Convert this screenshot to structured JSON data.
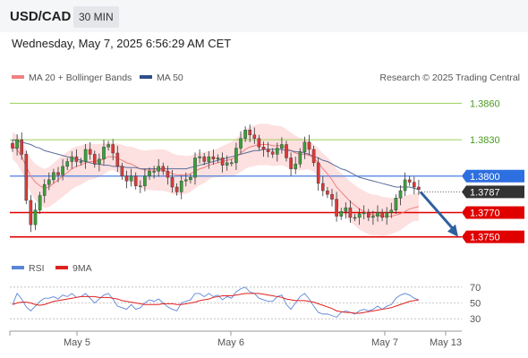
{
  "header": {
    "pair": "USD/CAD",
    "timeframe": "30 MIN"
  },
  "datetime": "Wednesday, May 7, 2025 6:56:29 AM CET",
  "legend": {
    "ma20": "MA 20 + Bollinger Bands",
    "ma50": "MA 50",
    "credit": "Research © 2025 Trading Central"
  },
  "indicator_legend": {
    "rsi": "RSI",
    "ma9": "9MA"
  },
  "colors": {
    "up": "#3a9f3a",
    "down": "#d93a3a",
    "resistance": "#9bcf5a",
    "support": "#e00000",
    "current_tag": "#333333",
    "pivot_line": "#4a7fe0",
    "ma50": "#5a6e9a",
    "ma20": "#f08080",
    "bands": "#fcd8d8",
    "rsi": "#5b86d8",
    "ma9": "#e02020",
    "arrow": "#2e5f9e"
  },
  "chart_data": [
    {
      "type": "candlestick",
      "title": "USD/CAD",
      "x_labels": [
        "May 5",
        "May 6",
        "May 7",
        "May 13"
      ],
      "ylim": [
        1.3735,
        1.3875
      ],
      "price_levels": [
        {
          "label": "1.3860",
          "value": 1.386,
          "kind": "resistance"
        },
        {
          "label": "1.3830",
          "value": 1.383,
          "kind": "resistance"
        },
        {
          "label": "1.3800",
          "value": 1.38,
          "kind": "pivot"
        },
        {
          "label": "1.3787",
          "value": 1.3787,
          "kind": "current"
        },
        {
          "label": "1.3770",
          "value": 1.377,
          "kind": "support"
        },
        {
          "label": "1.3750",
          "value": 1.375,
          "kind": "support"
        }
      ],
      "closes": [
        1.3823,
        1.383,
        1.3818,
        1.378,
        1.376,
        1.3772,
        1.3784,
        1.3793,
        1.3797,
        1.3803,
        1.3801,
        1.3808,
        1.3812,
        1.3816,
        1.3812,
        1.3812,
        1.3822,
        1.3818,
        1.381,
        1.3814,
        1.3824,
        1.3826,
        1.3819,
        1.3808,
        1.38,
        1.3796,
        1.38,
        1.3792,
        1.3792,
        1.38,
        1.3804,
        1.3804,
        1.3808,
        1.3804,
        1.3799,
        1.3791,
        1.3787,
        1.3796,
        1.3797,
        1.3799,
        1.3815,
        1.3816,
        1.3812,
        1.3816,
        1.3814,
        1.3815,
        1.3809,
        1.3811,
        1.3811,
        1.3823,
        1.3831,
        1.3838,
        1.3834,
        1.3831,
        1.3824,
        1.3822,
        1.382,
        1.3818,
        1.3823,
        1.3826,
        1.3815,
        1.3806,
        1.381,
        1.382,
        1.3828,
        1.3822,
        1.3811,
        1.3794,
        1.3788,
        1.3785,
        1.3781,
        1.3767,
        1.3771,
        1.3774,
        1.3766,
        1.3766,
        1.3769,
        1.377,
        1.3766,
        1.3767,
        1.377,
        1.3766,
        1.377,
        1.3772,
        1.3782,
        1.3788,
        1.3797,
        1.3795,
        1.3791,
        1.3789
      ],
      "ma20": [
        1.3825,
        1.3822,
        1.3816,
        1.3808,
        1.38,
        1.3795,
        1.3792,
        1.379,
        1.3791,
        1.3794,
        1.3797,
        1.38,
        1.3803,
        1.3806,
        1.3808,
        1.3809,
        1.3811,
        1.3812,
        1.3812,
        1.3813,
        1.3814,
        1.3816,
        1.3816,
        1.3815,
        1.3813,
        1.3811,
        1.381,
        1.3808,
        1.3806,
        1.3805,
        1.3805,
        1.3805,
        1.3805,
        1.3805,
        1.3804,
        1.3802,
        1.3801,
        1.3801,
        1.3801,
        1.3802,
        1.3804,
        1.3806,
        1.3807,
        1.3809,
        1.381,
        1.3811,
        1.3812,
        1.3813,
        1.3814,
        1.3816,
        1.3819,
        1.3822,
        1.3824,
        1.3825,
        1.3826,
        1.3826,
        1.3826,
        1.3825,
        1.3825,
        1.3825,
        1.3823,
        1.3821,
        1.3819,
        1.3818,
        1.3818,
        1.3817,
        1.3815,
        1.3811,
        1.3806,
        1.3802,
        1.3797,
        1.3791,
        1.3787,
        1.3783,
        1.3779,
        1.3776,
        1.3773,
        1.3771,
        1.3769,
        1.3768,
        1.3768,
        1.3767,
        1.3767,
        1.3767,
        1.3768,
        1.3769,
        1.3771,
        1.3773,
        1.3774,
        1.3775
      ],
      "ma50": [
        1.383,
        1.3829,
        1.3828,
        1.3827,
        1.3826,
        1.3824,
        1.3823,
        1.3821,
        1.382,
        1.3819,
        1.3818,
        1.3817,
        1.3816,
        1.3815,
        1.3814,
        1.3813,
        1.3812,
        1.3811,
        1.381,
        1.381,
        1.3809,
        1.3809,
        1.3808,
        1.3808,
        1.3808,
        1.3807,
        1.3807,
        1.3807,
        1.3806,
        1.3806,
        1.3806,
        1.3806,
        1.3806,
        1.3806,
        1.3806,
        1.3806,
        1.3806,
        1.3806,
        1.3806,
        1.3807,
        1.3808,
        1.3809,
        1.381,
        1.3811,
        1.3812,
        1.3813,
        1.3814,
        1.3815,
        1.3816,
        1.3817,
        1.3818,
        1.3819,
        1.382,
        1.3821,
        1.3821,
        1.3822,
        1.3822,
        1.3822,
        1.3822,
        1.3822,
        1.3821,
        1.3821,
        1.382,
        1.382,
        1.3819,
        1.3818,
        1.3816,
        1.3815,
        1.3813,
        1.3812,
        1.381,
        1.3808,
        1.3806,
        1.3805,
        1.3803,
        1.3801,
        1.3799,
        1.3798,
        1.3797,
        1.3796,
        1.3795,
        1.3794,
        1.3793,
        1.3792,
        1.3791,
        1.3791,
        1.3791,
        1.3791,
        1.379,
        1.3789
      ],
      "projection": {
        "from": 1.3787,
        "to": 1.375
      }
    },
    {
      "type": "line",
      "title": "RSI",
      "yticks": [
        70,
        50,
        30
      ],
      "ylim": [
        20,
        80
      ],
      "series": [
        {
          "name": "RSI",
          "values": [
            48,
            62,
            55,
            45,
            40,
            46,
            52,
            56,
            56,
            58,
            55,
            60,
            58,
            62,
            57,
            58,
            62,
            56,
            50,
            55,
            60,
            62,
            55,
            46,
            44,
            42,
            48,
            42,
            44,
            50,
            54,
            52,
            55,
            50,
            45,
            42,
            40,
            50,
            52,
            54,
            62,
            62,
            58,
            62,
            58,
            60,
            54,
            58,
            56,
            64,
            68,
            70,
            64,
            62,
            56,
            54,
            52,
            52,
            58,
            60,
            48,
            42,
            50,
            58,
            62,
            55,
            46,
            38,
            36,
            36,
            34,
            32,
            38,
            40,
            38,
            36,
            40,
            42,
            40,
            42,
            46,
            42,
            46,
            48,
            56,
            60,
            62,
            60,
            56,
            54
          ]
        },
        {
          "name": "9MA",
          "values": [
            48,
            50,
            51,
            51,
            50,
            48,
            47,
            48,
            50,
            52,
            53,
            54,
            55,
            56,
            57,
            58,
            58,
            58,
            58,
            57,
            57,
            57,
            56,
            55,
            53,
            52,
            51,
            50,
            49,
            48,
            48,
            48,
            48,
            49,
            49,
            49,
            48,
            48,
            49,
            50,
            51,
            53,
            54,
            55,
            57,
            58,
            59,
            59,
            59,
            60,
            61,
            62,
            62,
            62,
            62,
            61,
            60,
            59,
            58,
            57,
            55,
            54,
            53,
            53,
            53,
            52,
            51,
            49,
            47,
            45,
            43,
            40,
            39,
            38,
            38,
            37,
            37,
            38,
            39,
            40,
            41,
            42,
            43,
            44,
            46,
            48,
            50,
            52,
            53,
            54
          ]
        }
      ]
    }
  ]
}
